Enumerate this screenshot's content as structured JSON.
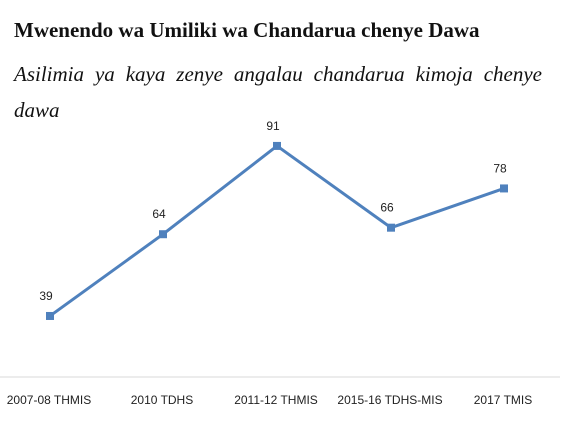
{
  "chart_data": {
    "type": "line",
    "title": "Mwenendo wa Umiliki wa Chandarua chenye Dawa",
    "subtitle": "Asilimia ya kaya zenye angalau chandarua kimoja chenye dawa",
    "categories": [
      "2007-08 THMIS",
      "2010 TDHS",
      "2011-12 THMIS",
      "2015-16 TDHS-MIS",
      "2017 TMIS"
    ],
    "series": [
      {
        "values": [
          39,
          64,
          91,
          66,
          78
        ],
        "color": "#4f81bd"
      }
    ],
    "data_labels": [
      "39",
      "64",
      "91",
      "66",
      "78"
    ],
    "xlabel": "",
    "ylabel": "",
    "grid": false,
    "legend": "none"
  }
}
